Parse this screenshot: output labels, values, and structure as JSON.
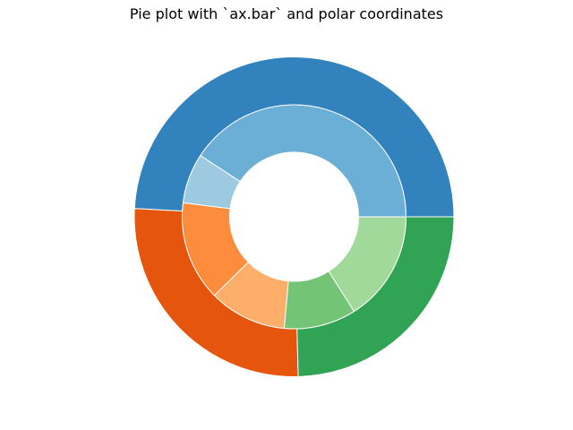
{
  "chart_data": {
    "type": "pie",
    "subtype": "nested-donut",
    "title": "Pie plot with `ax.bar` and polar coordinates",
    "start_angle_deg": 0,
    "direction": "counterclockwise",
    "rings": [
      {
        "name": "outer",
        "values": [
          60,
          32,
          30
        ],
        "colors": [
          "#3182bd",
          "#e6550d",
          "#31a354"
        ]
      },
      {
        "name": "inner",
        "values": [
          51,
          9,
          18,
          14,
          13,
          20
        ],
        "colors": [
          "#6baed6",
          "#9ecae1",
          "#fd8d3c",
          "#fdae6b",
          "#74c476",
          "#a1d99b"
        ]
      }
    ],
    "edge_color": "#ffffff",
    "grid": false,
    "axes_visible": false
  }
}
